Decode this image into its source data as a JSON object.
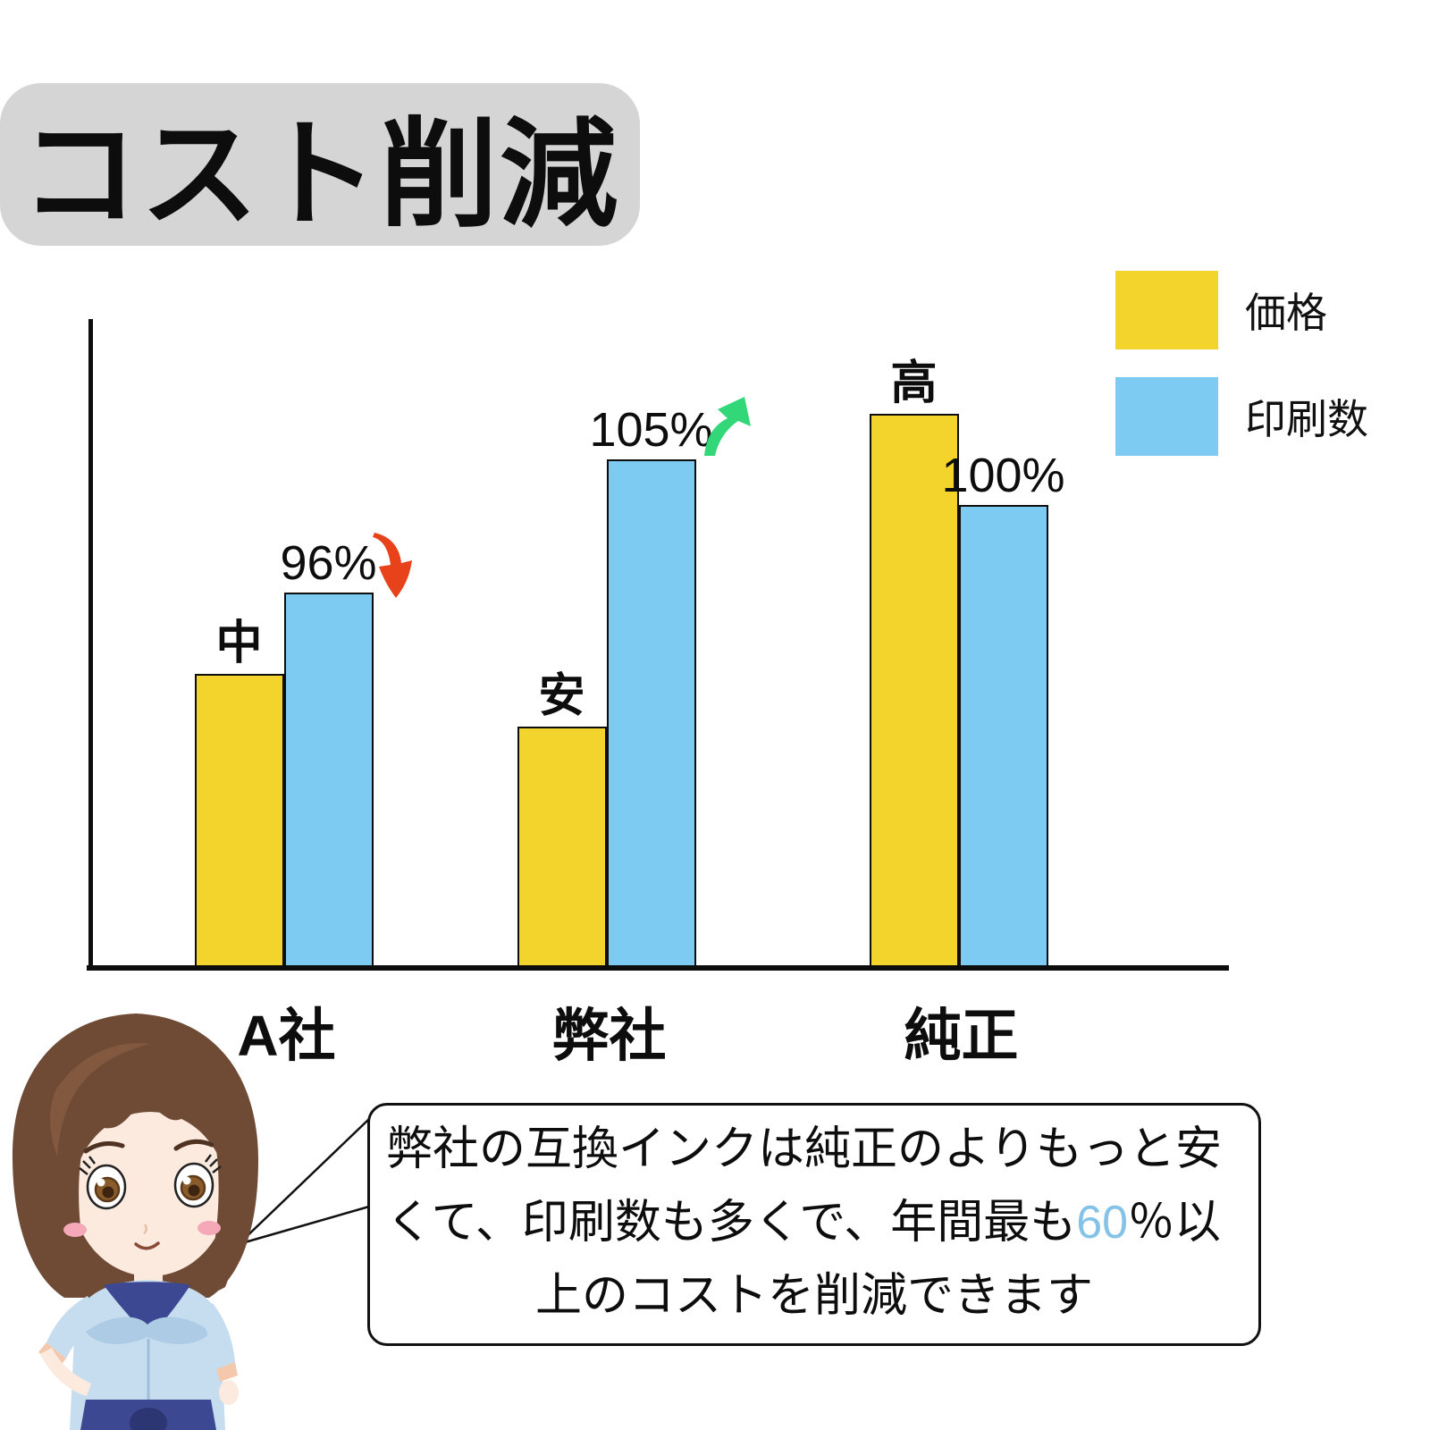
{
  "title": "コスト削減",
  "legend": {
    "items": [
      {
        "label": "価格",
        "color": "#F3D42C"
      },
      {
        "label": "印刷数",
        "color": "#7DCAF2"
      }
    ]
  },
  "chart_data": {
    "type": "bar",
    "title": "コスト削減",
    "categories": [
      "A社",
      "弊社",
      "純正"
    ],
    "series": [
      {
        "name": "価格",
        "color": "#F3D42C",
        "value_labels": [
          "中",
          "安",
          "高"
        ],
        "height_pct": [
          45,
          37,
          85
        ]
      },
      {
        "name": "印刷数",
        "color": "#7DCAF2",
        "value_labels": [
          "96%",
          "105%",
          "100%"
        ],
        "height_pct": [
          57.5,
          78,
          71
        ]
      }
    ],
    "annotations": [
      {
        "category": "A社",
        "series": "印刷数",
        "trend": "down",
        "color": "#E8421A"
      },
      {
        "category": "弊社",
        "series": "印刷数",
        "trend": "up",
        "color": "#32D877"
      }
    ],
    "axes": {
      "y_label": "",
      "x_label": "",
      "gridlines": false,
      "y_ticks": []
    },
    "legend_position": "top-right"
  },
  "callout": {
    "line1": "弊社の互換インクは純正のよりもっと安",
    "line2_pre": "くて、印刷数も多くで、年間最も",
    "line2_highlight": "60",
    "line2_post": "％以",
    "line3": "上のコストを削減できます",
    "highlight_color": "#84C3E8"
  },
  "colors": {
    "banner_bg": "#D5D5D5",
    "axis": "#0D0D0D",
    "price_bar": "#F3D42C",
    "prints_bar": "#7DCAF2"
  }
}
